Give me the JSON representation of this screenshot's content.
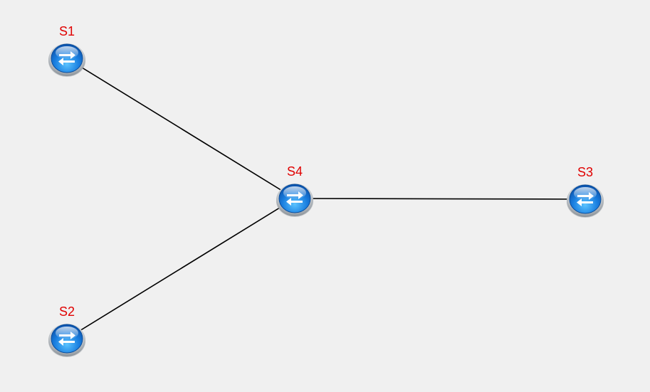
{
  "colors": {
    "background": "#f0f0f0",
    "link": "#000000",
    "label": "#e00000",
    "switch_icon": "blue-switch-icon"
  },
  "nodes": [
    {
      "id": "S1",
      "label": "S1",
      "icon": "switch-icon"
    },
    {
      "id": "S2",
      "label": "S2",
      "icon": "switch-icon"
    },
    {
      "id": "S3",
      "label": "S3",
      "icon": "switch-icon"
    },
    {
      "id": "S4",
      "label": "S4",
      "icon": "switch-icon"
    }
  ],
  "links": [
    {
      "from": "S1",
      "to": "S4"
    },
    {
      "from": "S2",
      "to": "S4"
    },
    {
      "from": "S4",
      "to": "S3"
    }
  ]
}
